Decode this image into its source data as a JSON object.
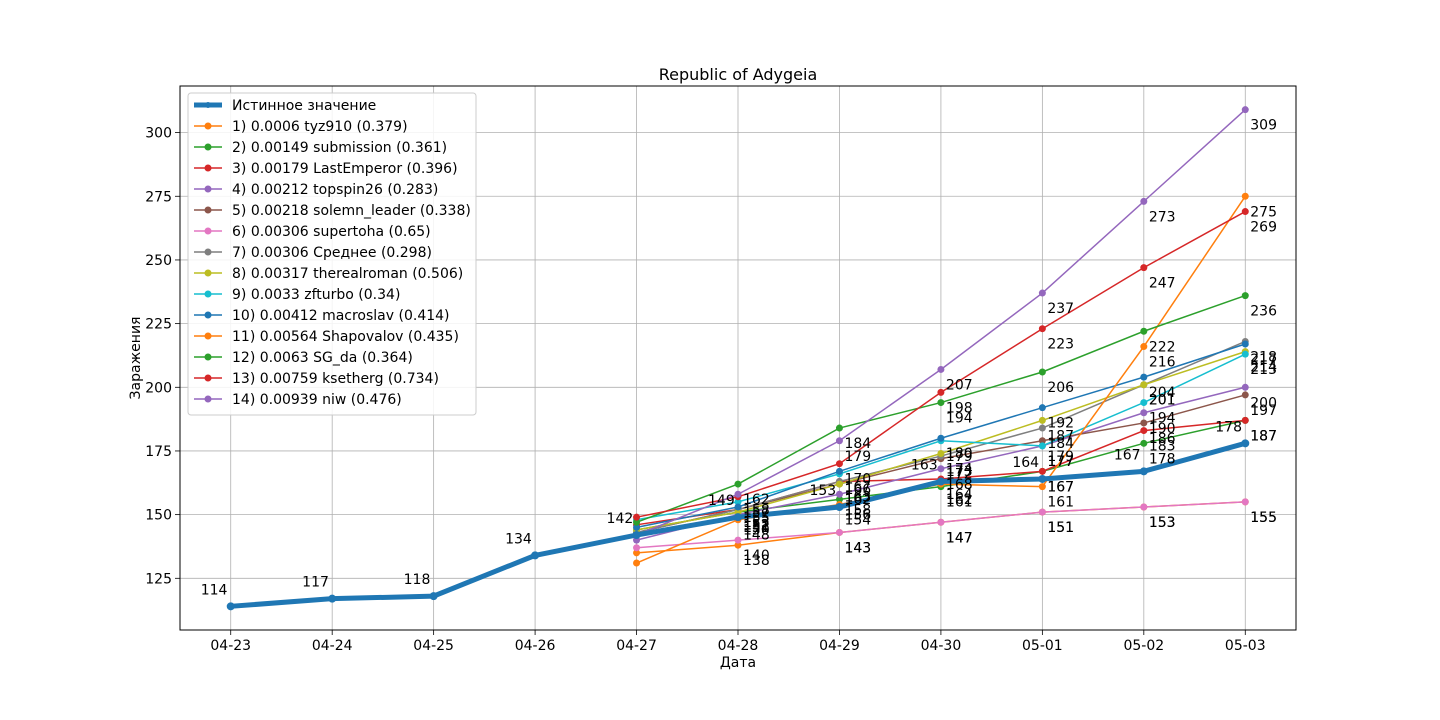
{
  "chart_data": {
    "type": "line",
    "title": "Republic of Adygeia",
    "xlabel": "Дата",
    "ylabel": "Заражения",
    "categories": [
      "04-23",
      "04-24",
      "04-25",
      "04-26",
      "04-27",
      "04-28",
      "04-29",
      "04-30",
      "05-01",
      "05-02",
      "05-03"
    ],
    "xlim": [
      -0.5,
      10.5
    ],
    "ylim": [
      104.7,
      318.3
    ],
    "yticks": [
      125,
      150,
      175,
      200,
      225,
      250,
      275,
      300
    ],
    "grid": true,
    "legend_position": "top-left",
    "true_series": {
      "name": "Истинное значение",
      "color": "#1f77b4",
      "values": [
        114,
        117,
        118,
        134,
        142,
        149,
        153,
        163,
        164,
        167,
        178
      ]
    },
    "series": [
      {
        "name": "1) 0.0006 tyz910 (0.379)",
        "color": "#ff7f0e",
        "values": [
          null,
          null,
          null,
          null,
          135,
          138,
          143,
          147,
          151,
          153,
          155
        ]
      },
      {
        "name": "2) 0.00149 submission (0.361)",
        "color": "#2ca02c",
        "values": [
          null,
          null,
          null,
          null,
          144,
          151,
          156,
          161,
          167,
          178,
          187
        ]
      },
      {
        "name": "3) 0.00179 LastEmperor (0.396)",
        "color": "#d62728",
        "values": [
          null,
          null,
          null,
          null,
          146,
          152,
          163,
          164,
          167,
          183,
          187
        ]
      },
      {
        "name": "4) 0.00212 topspin26 (0.283)",
        "color": "#9467bd",
        "values": [
          null,
          null,
          null,
          null,
          140,
          150,
          158,
          168,
          177,
          190,
          200
        ]
      },
      {
        "name": "5) 0.00218 solemn_leader (0.338)",
        "color": "#8c564b",
        "values": [
          null,
          null,
          null,
          null,
          143,
          152,
          162,
          172,
          179,
          186,
          197
        ]
      },
      {
        "name": "6) 0.00306 supertoha (0.65)",
        "color": "#e377c2",
        "values": [
          null,
          null,
          null,
          null,
          137,
          140,
          143,
          147,
          151,
          153,
          155
        ]
      },
      {
        "name": "7) 0.00306 Среднее (0.298)",
        "color": "#7f7f7f",
        "values": [
          null,
          null,
          null,
          null,
          143,
          152,
          163,
          173,
          184,
          201,
          218
        ]
      },
      {
        "name": "8) 0.00317 therealroman (0.506)",
        "color": "#bcbd22",
        "values": [
          null,
          null,
          null,
          null,
          144,
          151,
          162,
          174,
          187,
          201,
          214
        ]
      },
      {
        "name": "9) 0.0033 zfturbo (0.34)",
        "color": "#17becf",
        "values": [
          null,
          null,
          null,
          null,
          148,
          155,
          166,
          179,
          177,
          194,
          213
        ]
      },
      {
        "name": "10) 0.00412 macroslav (0.414)",
        "color": "#1f77b4",
        "values": [
          null,
          null,
          null,
          null,
          145,
          153,
          167,
          180,
          192,
          204,
          217
        ]
      },
      {
        "name": "11) 0.00564 Shapovalov (0.435)",
        "color": "#ff7f0e",
        "values": [
          null,
          null,
          null,
          null,
          131,
          148,
          154,
          162,
          161,
          216,
          275
        ]
      },
      {
        "name": "12) 0.0063 SG_da  (0.364)",
        "color": "#2ca02c",
        "values": [
          null,
          null,
          null,
          null,
          147,
          162,
          184,
          194,
          206,
          222,
          236
        ]
      },
      {
        "name": "13) 0.00759 ksetherg (0.734)",
        "color": "#d62728",
        "values": [
          null,
          null,
          null,
          null,
          149,
          157,
          170,
          198,
          223,
          247,
          269
        ]
      },
      {
        "name": "14) 0.00939 niw (0.476)",
        "color": "#9467bd",
        "values": [
          null,
          null,
          null,
          null,
          142,
          158,
          179,
          207,
          237,
          273,
          309
        ]
      }
    ]
  }
}
